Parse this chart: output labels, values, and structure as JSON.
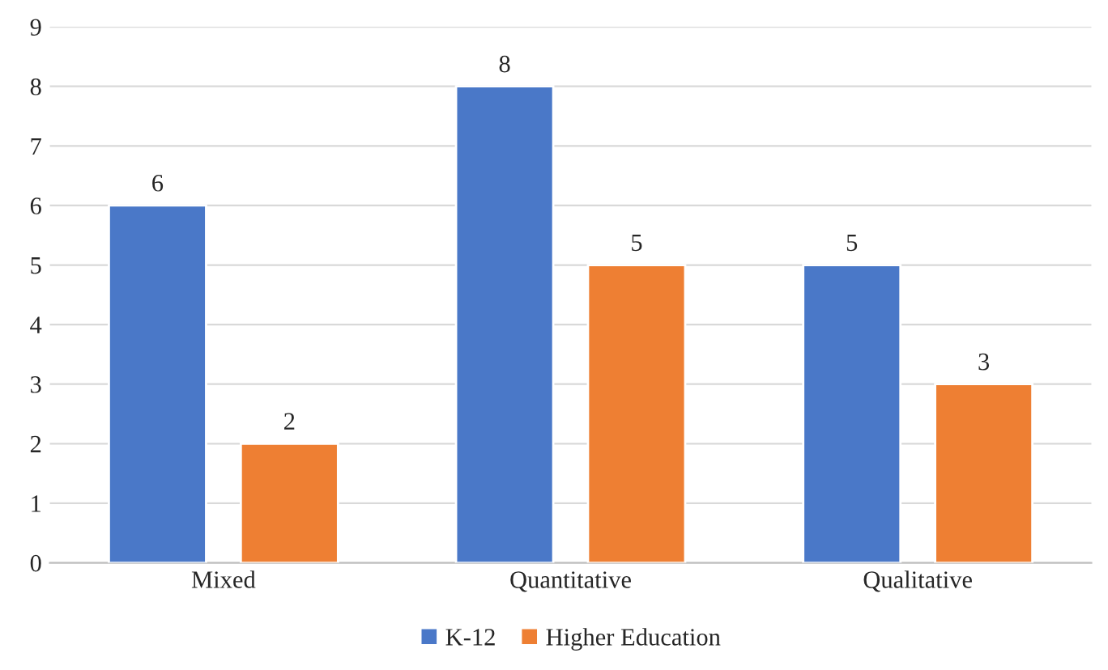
{
  "chart_data": {
    "type": "bar",
    "categories": [
      "Mixed",
      "Quantitative",
      "Qualitative"
    ],
    "series": [
      {
        "name": "K-12",
        "color": "#4a78c8",
        "values": [
          6,
          8,
          5
        ]
      },
      {
        "name": "Higher Education",
        "color": "#ee7f33",
        "values": [
          2,
          5,
          3
        ]
      }
    ],
    "ylim": [
      0,
      9
    ],
    "yticks": [
      0,
      1,
      2,
      3,
      4,
      5,
      6,
      7,
      8,
      9
    ],
    "grid": "y",
    "legend": "bottom",
    "data_labels": true
  }
}
